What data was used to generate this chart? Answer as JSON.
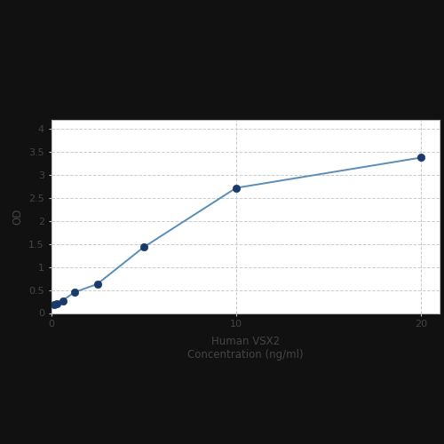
{
  "x": [
    0.156,
    0.313,
    0.625,
    1.25,
    2.5,
    5,
    10,
    20
  ],
  "y": [
    0.175,
    0.21,
    0.27,
    0.45,
    0.63,
    1.43,
    2.72,
    3.38
  ],
  "line_color": "#5b8db8",
  "marker_color": "#1a3a6b",
  "marker_size": 6,
  "line_width": 1.4,
  "xlabel_line1": "Human VSX2",
  "xlabel_line2": "Concentration (ng/ml)",
  "ylabel": "OD",
  "xlim": [
    0,
    21
  ],
  "ylim": [
    0,
    4.2
  ],
  "yticks": [
    0,
    0.5,
    1,
    1.5,
    2,
    2.5,
    3,
    3.5,
    4
  ],
  "xticks": [
    0,
    10,
    20
  ],
  "grid_color": "#cccccc",
  "plot_bg": "#ffffff",
  "outer_bg": "#111111",
  "font_color": "#444444",
  "label_fontsize": 8.5,
  "tick_fontsize": 8
}
